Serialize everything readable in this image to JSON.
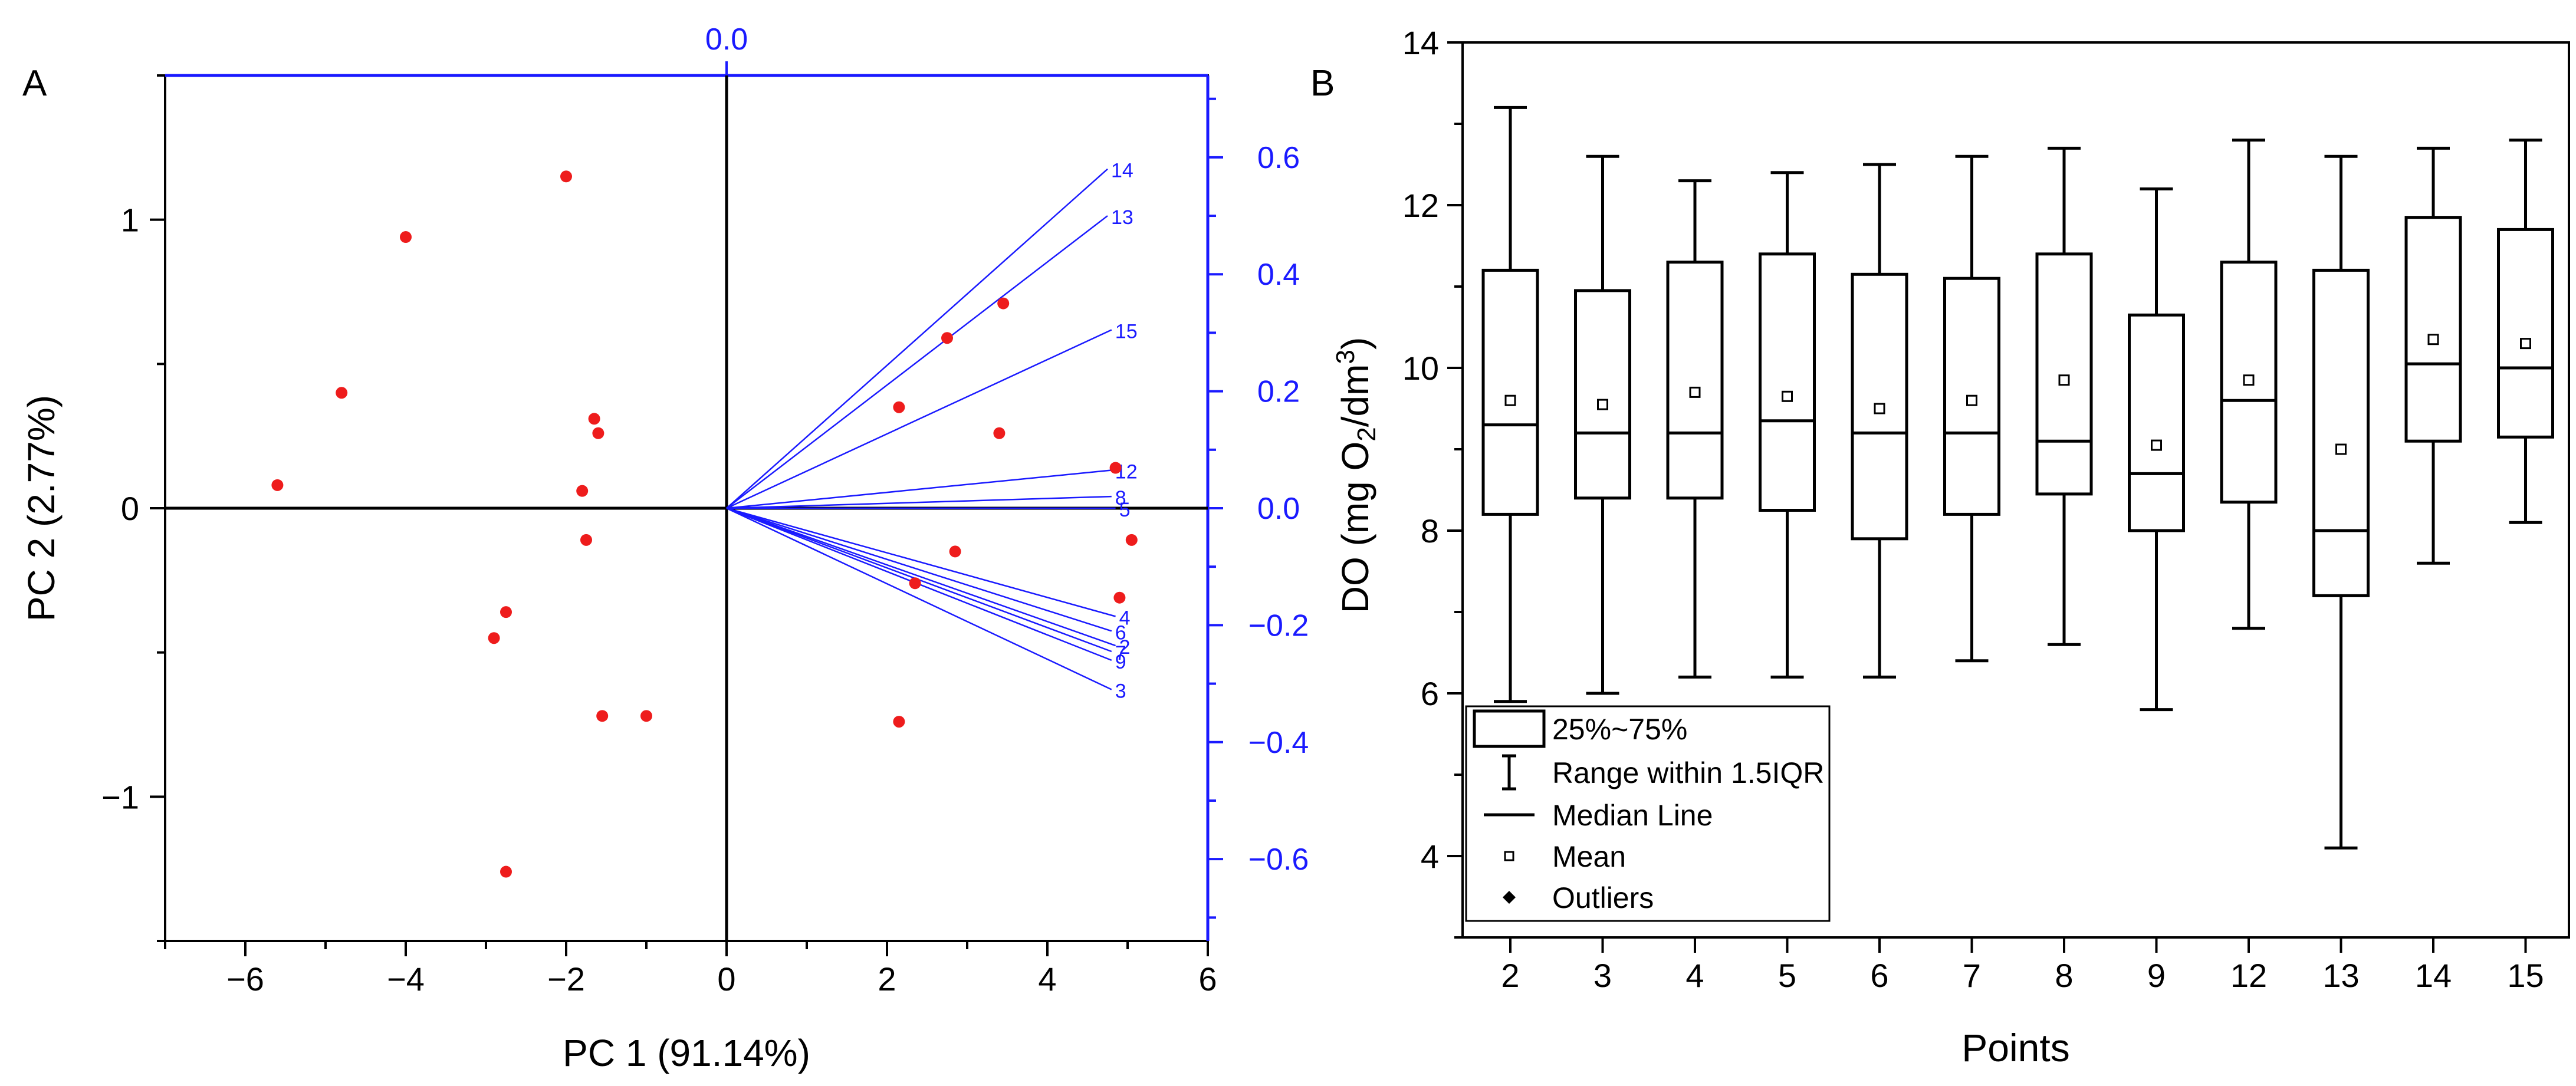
{
  "colors": {
    "accent_blue": "#1a1aff",
    "point_red": "#ee1c1c",
    "axis_black": "#000000"
  },
  "chart_data": [
    {
      "panel_label": "A",
      "type": "scatter",
      "subtype": "biplot",
      "xlabel": "PC 1 (91.14%)",
      "ylabel": "PC 2 (2.77%)",
      "xlim": [
        -7,
        6
      ],
      "ylim": [
        -1.5,
        1.5
      ],
      "x_ticks": [
        -6,
        -4,
        -2,
        0,
        2,
        4,
        6
      ],
      "x_tick_labels": [
        "−6",
        "−4",
        "−2",
        "0",
        "2",
        "4",
        "6"
      ],
      "y_ticks": [
        -1,
        0,
        1
      ],
      "y_tick_labels": [
        "−1",
        "0",
        "1"
      ],
      "secondary_ylim": [
        -0.74,
        0.74
      ],
      "secondary_y_ticks": [
        0.6,
        0.4,
        0.2,
        0.0,
        -0.2,
        -0.4,
        -0.6
      ],
      "secondary_y_tick_labels": [
        "0.6",
        "0.4",
        "0.2",
        "0.0",
        "−0.2",
        "−0.4",
        "−0.6"
      ],
      "top_axis_label": "0.0",
      "grid": false,
      "scores": [
        {
          "x": -5.6,
          "y": 0.08
        },
        {
          "x": -4.8,
          "y": 0.4
        },
        {
          "x": -4.0,
          "y": 0.94
        },
        {
          "x": -2.0,
          "y": 1.15
        },
        {
          "x": -1.65,
          "y": 0.31
        },
        {
          "x": -1.6,
          "y": 0.26
        },
        {
          "x": -1.8,
          "y": 0.06
        },
        {
          "x": -1.75,
          "y": -0.11
        },
        {
          "x": -2.75,
          "y": -0.36
        },
        {
          "x": -2.9,
          "y": -0.45
        },
        {
          "x": -1.55,
          "y": -0.72
        },
        {
          "x": -1.0,
          "y": -0.72
        },
        {
          "x": -2.75,
          "y": -1.26
        },
        {
          "x": 2.15,
          "y": 0.35
        },
        {
          "x": 2.75,
          "y": 0.59
        },
        {
          "x": 3.45,
          "y": 0.71
        },
        {
          "x": 3.4,
          "y": 0.26
        },
        {
          "x": 4.85,
          "y": 0.14
        },
        {
          "x": 5.05,
          "y": -0.11
        },
        {
          "x": 2.85,
          "y": -0.15
        },
        {
          "x": 2.35,
          "y": -0.26
        },
        {
          "x": 4.9,
          "y": -0.31
        },
        {
          "x": 2.15,
          "y": -0.74
        }
      ],
      "loadings": [
        {
          "label": "14",
          "x": 4.75,
          "y": 0.58
        },
        {
          "label": "13",
          "x": 4.75,
          "y": 0.5
        },
        {
          "label": "15",
          "x": 4.8,
          "y": 0.305
        },
        {
          "label": "12",
          "x": 4.8,
          "y": 0.065
        },
        {
          "label": "8",
          "x": 4.8,
          "y": 0.02
        },
        {
          "label": "5",
          "x": 4.85,
          "y": 0.0
        },
        {
          "label": "4",
          "x": 4.85,
          "y": -0.185
        },
        {
          "label": "6",
          "x": 4.8,
          "y": -0.21
        },
        {
          "label": "2",
          "x": 4.85,
          "y": -0.235
        },
        {
          "label": "7",
          "x": 4.8,
          "y": -0.245
        },
        {
          "label": "9",
          "x": 4.8,
          "y": -0.26
        },
        {
          "label": "3",
          "x": 4.8,
          "y": -0.31
        }
      ]
    },
    {
      "panel_label": "B",
      "type": "box",
      "xlabel": "Points",
      "ylabel_parts": {
        "main": "DO (mg O",
        "sub": "2",
        "mid": "/dm",
        "sup": "3",
        "end": ")"
      },
      "ylim": [
        3,
        14
      ],
      "y_ticks": [
        4,
        6,
        8,
        10,
        12,
        14
      ],
      "y_tick_labels": [
        "4",
        "6",
        "8",
        "10",
        "12",
        "14"
      ],
      "categories": [
        "2",
        "3",
        "4",
        "5",
        "6",
        "7",
        "8",
        "9",
        "12",
        "13",
        "14",
        "15"
      ],
      "boxes": [
        {
          "min": 5.9,
          "q1": 8.2,
          "median": 9.3,
          "q3": 11.2,
          "max": 13.2,
          "mean": 9.6
        },
        {
          "min": 6.0,
          "q1": 8.4,
          "median": 9.2,
          "q3": 10.95,
          "max": 12.6,
          "mean": 9.55
        },
        {
          "min": 6.2,
          "q1": 8.4,
          "median": 9.2,
          "q3": 11.3,
          "max": 12.3,
          "mean": 9.7
        },
        {
          "min": 6.2,
          "q1": 8.25,
          "median": 9.35,
          "q3": 11.4,
          "max": 12.4,
          "mean": 9.65
        },
        {
          "min": 6.2,
          "q1": 7.9,
          "median": 9.2,
          "q3": 11.15,
          "max": 12.5,
          "mean": 9.5
        },
        {
          "min": 6.4,
          "q1": 8.2,
          "median": 9.2,
          "q3": 11.1,
          "max": 12.6,
          "mean": 9.6
        },
        {
          "min": 6.6,
          "q1": 8.45,
          "median": 9.1,
          "q3": 11.4,
          "max": 12.7,
          "mean": 9.85
        },
        {
          "min": 5.8,
          "q1": 8.0,
          "median": 8.7,
          "q3": 10.65,
          "max": 12.2,
          "mean": 9.05
        },
        {
          "min": 6.8,
          "q1": 8.35,
          "median": 9.6,
          "q3": 11.3,
          "max": 12.8,
          "mean": 9.85
        },
        {
          "min": 4.1,
          "q1": 7.2,
          "median": 8.0,
          "q3": 11.2,
          "max": 12.6,
          "mean": 9.0
        },
        {
          "min": 7.6,
          "q1": 9.1,
          "median": 10.05,
          "q3": 11.85,
          "max": 12.7,
          "mean": 10.35
        },
        {
          "min": 8.1,
          "q1": 9.15,
          "median": 10.0,
          "q3": 11.7,
          "max": 12.8,
          "mean": 10.3
        }
      ],
      "legend": {
        "placement": "bottom-left",
        "entries": [
          "25%~75%",
          "Range within 1.5IQR",
          "Median Line",
          "Mean",
          "Outliers"
        ]
      },
      "grid": false
    }
  ]
}
